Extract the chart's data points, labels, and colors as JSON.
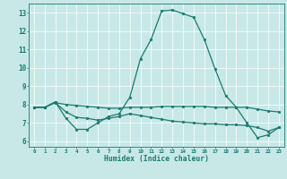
{
  "xlabel": "Humidex (Indice chaleur)",
  "xlim": [
    -0.5,
    23.5
  ],
  "ylim": [
    5.7,
    13.5
  ],
  "yticks": [
    6,
    7,
    8,
    9,
    10,
    11,
    12,
    13
  ],
  "xticks": [
    0,
    1,
    2,
    3,
    4,
    5,
    6,
    7,
    8,
    9,
    10,
    11,
    12,
    13,
    14,
    15,
    16,
    17,
    18,
    19,
    20,
    21,
    22,
    23
  ],
  "bg_color": "#c8e8e8",
  "plot_bg_color": "#c8e8e8",
  "line_color": "#1a7a6e",
  "axis_bg": "#8a9a9a",
  "line1_x": [
    0,
    1,
    2,
    3,
    4,
    5,
    6,
    7,
    8,
    9,
    10,
    11,
    12,
    13,
    14,
    15,
    16,
    17,
    18,
    19,
    20,
    21,
    22,
    23
  ],
  "line1_y": [
    7.85,
    7.85,
    8.15,
    7.25,
    6.65,
    6.65,
    7.0,
    7.35,
    7.5,
    8.4,
    10.5,
    11.55,
    13.1,
    13.15,
    12.95,
    12.75,
    11.55,
    9.95,
    8.5,
    7.85,
    7.0,
    6.2,
    6.35,
    6.75
  ],
  "line2_x": [
    0,
    1,
    2,
    3,
    4,
    5,
    6,
    7,
    8,
    9,
    10,
    11,
    12,
    13,
    14,
    15,
    16,
    17,
    18,
    19,
    20,
    21,
    22,
    23
  ],
  "line2_y": [
    7.85,
    7.85,
    8.1,
    8.0,
    7.95,
    7.9,
    7.85,
    7.8,
    7.8,
    7.85,
    7.85,
    7.85,
    7.9,
    7.9,
    7.9,
    7.9,
    7.9,
    7.85,
    7.85,
    7.85,
    7.85,
    7.75,
    7.65,
    7.6
  ],
  "line3_x": [
    0,
    1,
    2,
    3,
    4,
    5,
    6,
    7,
    8,
    9,
    10,
    11,
    12,
    13,
    14,
    15,
    16,
    17,
    18,
    19,
    20,
    21,
    22,
    23
  ],
  "line3_y": [
    7.85,
    7.85,
    8.1,
    7.6,
    7.3,
    7.25,
    7.15,
    7.25,
    7.35,
    7.5,
    7.4,
    7.3,
    7.2,
    7.1,
    7.05,
    7.0,
    6.95,
    6.95,
    6.9,
    6.9,
    6.85,
    6.75,
    6.55,
    6.75
  ]
}
